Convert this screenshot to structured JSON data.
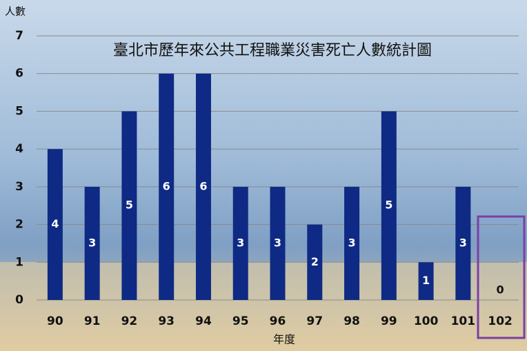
{
  "chart_data": {
    "type": "bar",
    "title": "臺北市歷年來公共工程職業災害死亡人數統計圖",
    "y_label": "人數",
    "x_label": "年度",
    "categories": [
      "90",
      "91",
      "92",
      "93",
      "94",
      "95",
      "96",
      "97",
      "98",
      "99",
      "100",
      "101",
      "102"
    ],
    "values": [
      4,
      3,
      5,
      6,
      6,
      3,
      3,
      2,
      3,
      5,
      1,
      3,
      0
    ],
    "color": "#0e2a84",
    "ylim": [
      0,
      7
    ],
    "yticks": [
      0,
      1,
      2,
      3,
      4,
      5,
      6,
      7
    ],
    "grid": true
  }
}
